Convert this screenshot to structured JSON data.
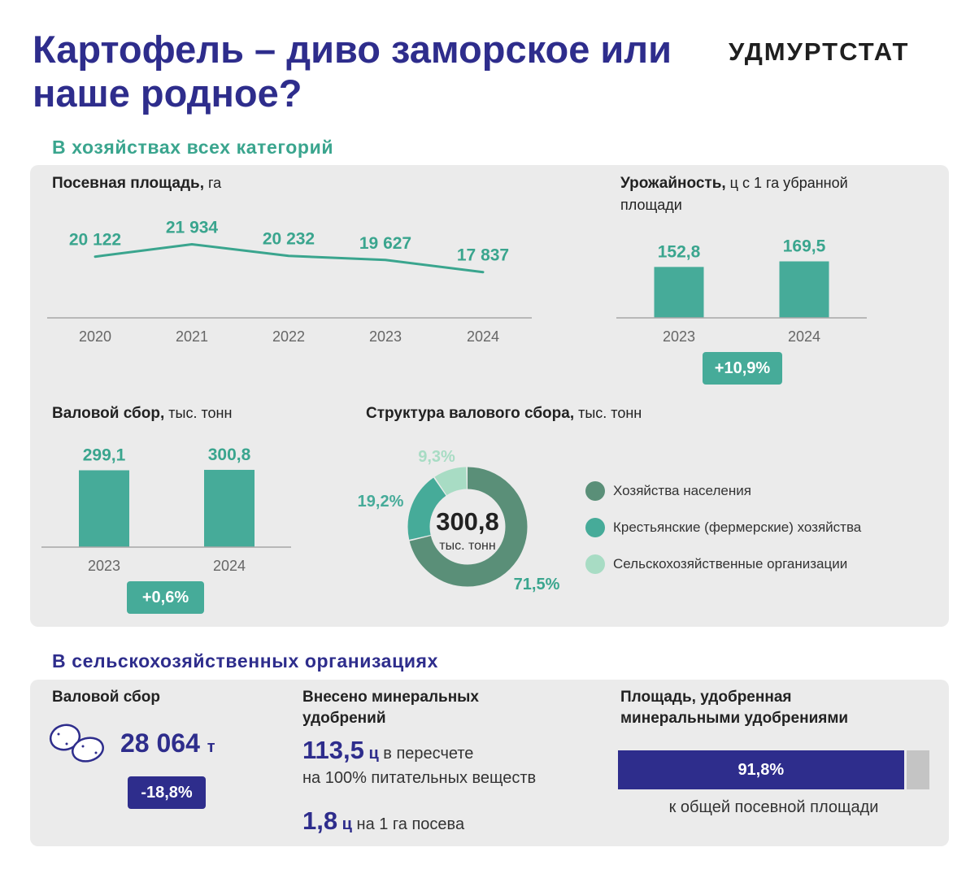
{
  "header": {
    "title": "Картофель – диво заморское или наше родное?",
    "brand": "УДМУРТСТАТ"
  },
  "section1": {
    "title": "В хозяйствах всех категорий",
    "area": {
      "title_bold": "Посевная площадь,",
      "title_unit": " га"
    },
    "yield": {
      "title_bold": "Урожайность,",
      "title_unit": " ц с 1 га убранной площади",
      "badge": "+10,9%"
    },
    "harvest": {
      "title_bold": "Валовой сбор,",
      "title_unit": " тыс. тонн",
      "badge": "+0,6%"
    },
    "structure": {
      "title_bold": "Структура валового сбора,",
      "title_unit": " тыс. тонн",
      "center_value": "300,8",
      "center_unit": "тыс. тонн"
    }
  },
  "section2": {
    "title": "В сельскохозяйственных организациях",
    "harvest": {
      "title": "Валовой сбор",
      "value": "28 064",
      "unit": "т",
      "badge": "-18,8%"
    },
    "fertilizer": {
      "title": "Внесено минеральных удобрений",
      "value1": "113,5",
      "unit1": "ц",
      "text1a": "в пересчете",
      "text1b": "на 100% питательных веществ",
      "value2": "1,8",
      "unit2": "ц",
      "text2": "на 1 га посева"
    },
    "fertilized_area": {
      "title": "Площадь, удобренная минеральными удобрениями",
      "share_label": "91,8%",
      "share": 91.8,
      "caption": "к общей посевной площади",
      "bar_color": "#2e2d8c",
      "rest_color": "#c4c4c4"
    }
  },
  "chart_data": [
    {
      "type": "line",
      "title": "Посевная площадь, га",
      "x": [
        "2020",
        "2021",
        "2022",
        "2023",
        "2024"
      ],
      "series": [
        {
          "values": [
            20122,
            21934,
            20232,
            19627,
            17837
          ],
          "labels": [
            "20 122",
            "21 934",
            "20 232",
            "19 627",
            "17 837"
          ]
        }
      ],
      "color": "#3aa58e"
    },
    {
      "type": "bar",
      "title": "Урожайность, ц с 1 га убранной площади",
      "categories": [
        "2023",
        "2024"
      ],
      "values": [
        152.8,
        169.5
      ],
      "labels": [
        "152,8",
        "169,5"
      ],
      "color": "#46ab99"
    },
    {
      "type": "bar",
      "title": "Валовой сбор, тыс. тонн",
      "categories": [
        "2023",
        "2024"
      ],
      "values": [
        299.1,
        300.8
      ],
      "labels": [
        "299,1",
        "300,8"
      ],
      "color": "#46ab99"
    },
    {
      "type": "pie",
      "title": "Структура валового сбора, тыс. тонн",
      "slices": [
        {
          "name": "Хозяйства населения",
          "value": 71.5,
          "label": "71,5%",
          "color": "#5a8f78"
        },
        {
          "name": "Крестьянские (фермерские) хозяйства",
          "value": 19.2,
          "label": "19,2%",
          "color": "#46ab99"
        },
        {
          "name": "Сельскохозяйственные организации",
          "value": 9.3,
          "label": "9,3%",
          "color": "#a8dcc4"
        }
      ]
    }
  ]
}
